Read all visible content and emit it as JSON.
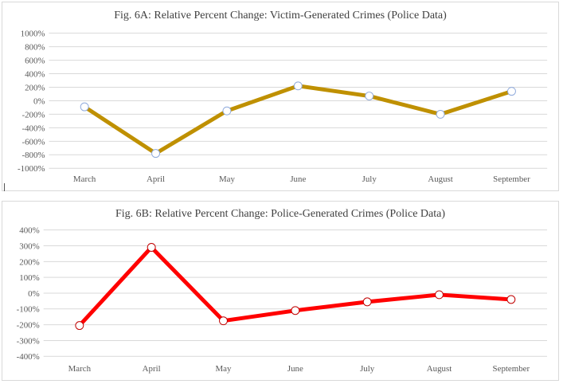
{
  "chart_data": [
    {
      "type": "line",
      "title": "Fig. 6A: Relative Percent Change: Victim-Generated Crimes (Police Data)",
      "categories": [
        "March",
        "April",
        "May",
        "June",
        "July",
        "August",
        "September"
      ],
      "series": [
        {
          "values": [
            -90,
            -780,
            -150,
            220,
            70,
            -200,
            140
          ],
          "color": "#bf9000"
        }
      ],
      "ylim": [
        -1000,
        1000
      ],
      "yticks": [
        1000,
        800,
        600,
        400,
        200,
        0,
        -200,
        -400,
        -600,
        -800,
        -1000
      ],
      "ytick_labels": [
        "1000%",
        "800%",
        "600%",
        "400%",
        "200%",
        "0%",
        "-200%",
        "-400%",
        "-600%",
        "-800%",
        "-1000%"
      ],
      "grid": true,
      "marker_fill": "#ffffff",
      "marker_stroke": "#8faadc"
    },
    {
      "type": "line",
      "title": "Fig. 6B: Relative Percent Change: Police-Generated Crimes (Police Data)",
      "categories": [
        "March",
        "April",
        "May",
        "June",
        "July",
        "August",
        "September"
      ],
      "series": [
        {
          "values": [
            -205,
            290,
            -175,
            -110,
            -55,
            -10,
            -40
          ],
          "color": "#ff0000"
        }
      ],
      "ylim": [
        -400,
        400
      ],
      "yticks": [
        400,
        300,
        200,
        100,
        0,
        -100,
        -200,
        -300,
        -400
      ],
      "ytick_labels": [
        "400%",
        "300%",
        "200%",
        "100%",
        "0%",
        "-100%",
        "-200%",
        "-300%",
        "-400%"
      ],
      "grid": true,
      "marker_fill": "#ffffff",
      "marker_stroke": "#c00000"
    }
  ]
}
